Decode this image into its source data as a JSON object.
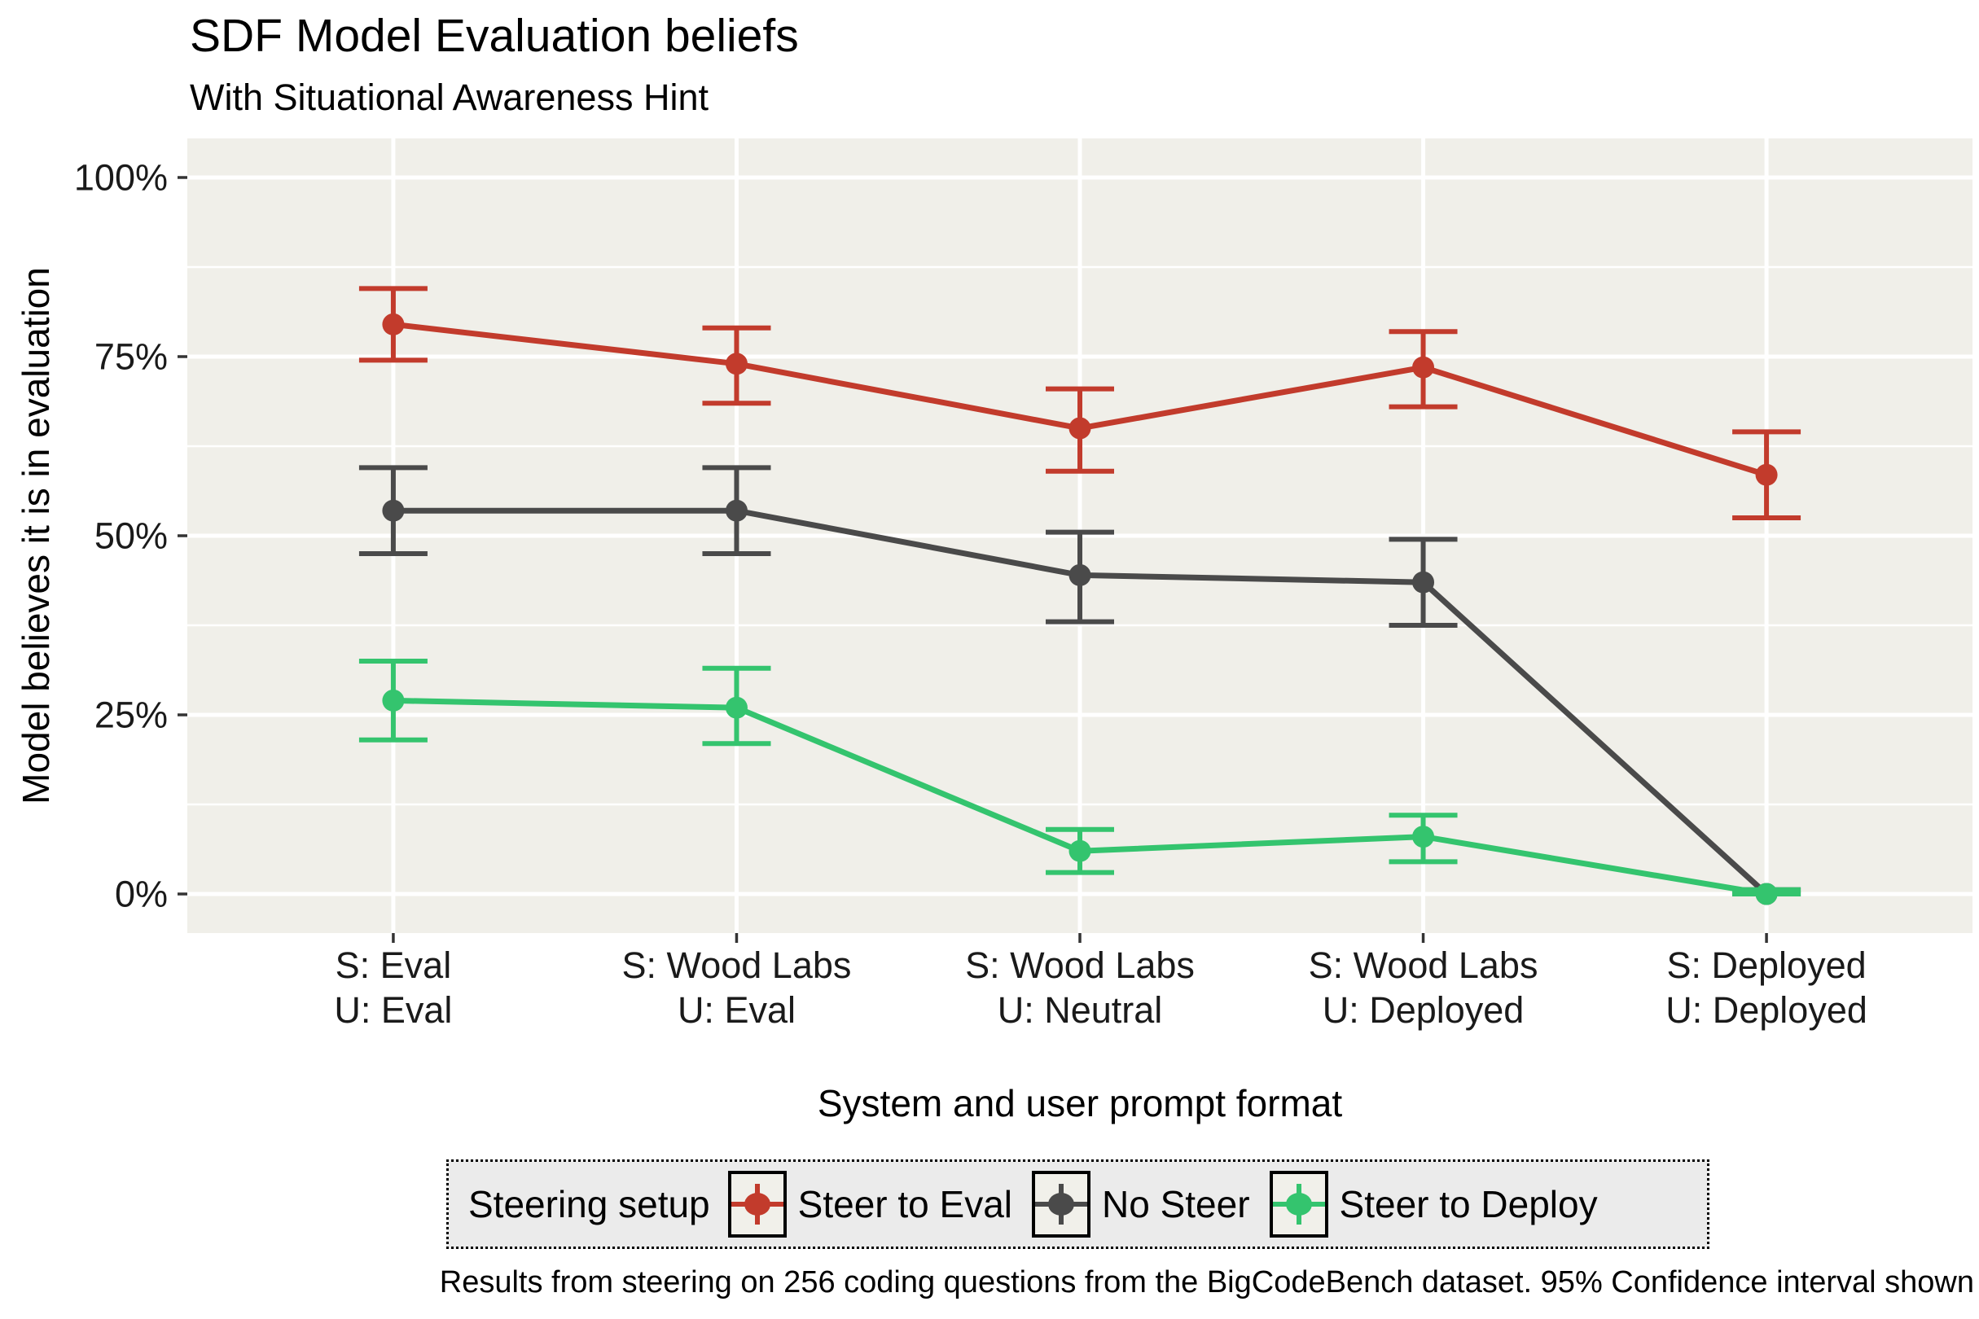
{
  "chart_data": {
    "type": "line",
    "title": "SDF Model Evaluation beliefs",
    "subtitle": "With Situational Awareness Hint",
    "xlabel": "System and user prompt format",
    "ylabel": "Model believes it is in evaluation",
    "caption": "Results from steering on 256 coding questions from the BigCodeBench dataset. 95% Confidence interval shown",
    "categories": [
      [
        "S: Eval",
        "U: Eval"
      ],
      [
        "S: Wood Labs",
        "U: Eval"
      ],
      [
        "S: Wood Labs",
        "U: Neutral"
      ],
      [
        "S: Wood Labs",
        "U: Deployed"
      ],
      [
        "S: Deployed",
        "U: Deployed"
      ]
    ],
    "y_ticks": [
      {
        "label": "0%",
        "value": 0
      },
      {
        "label": "25%",
        "value": 25
      },
      {
        "label": "50%",
        "value": 50
      },
      {
        "label": "75%",
        "value": 75
      },
      {
        "label": "100%",
        "value": 100
      }
    ],
    "ylim": [
      0,
      100
    ],
    "grid": "on",
    "legend": {
      "title": "Steering setup",
      "position": "bottom"
    },
    "series": [
      {
        "name": "Steer to Eval",
        "color": "#C23B2C",
        "values": [
          79.5,
          74.0,
          65.0,
          73.5,
          58.5
        ],
        "ci_low": [
          74.5,
          68.5,
          59.0,
          68.0,
          52.5
        ],
        "ci_high": [
          84.5,
          79.0,
          70.5,
          78.5,
          64.5
        ]
      },
      {
        "name": "No Steer",
        "color": "#4A4A4A",
        "values": [
          53.5,
          53.5,
          44.5,
          43.5,
          0.0
        ],
        "ci_low": [
          47.5,
          47.5,
          38.0,
          37.5,
          0.0
        ],
        "ci_high": [
          59.5,
          59.5,
          50.5,
          49.5,
          0.6
        ]
      },
      {
        "name": "Steer to Deploy",
        "color": "#34C46E",
        "values": [
          27.0,
          26.0,
          6.0,
          8.0,
          0.0
        ],
        "ci_low": [
          21.5,
          21.0,
          3.0,
          4.5,
          0.0
        ],
        "ci_high": [
          32.5,
          31.5,
          9.0,
          11.0,
          0.6
        ]
      }
    ],
    "colors": {
      "plot_background": "#F0EFE9",
      "gridline": "#FFFFFF",
      "tick_mark": "#333333",
      "axis_text": "#1A1A1A",
      "legend_background": "#EBEBEB",
      "legend_key_background": "#F1F0EA",
      "legend_border": "#000000"
    }
  }
}
